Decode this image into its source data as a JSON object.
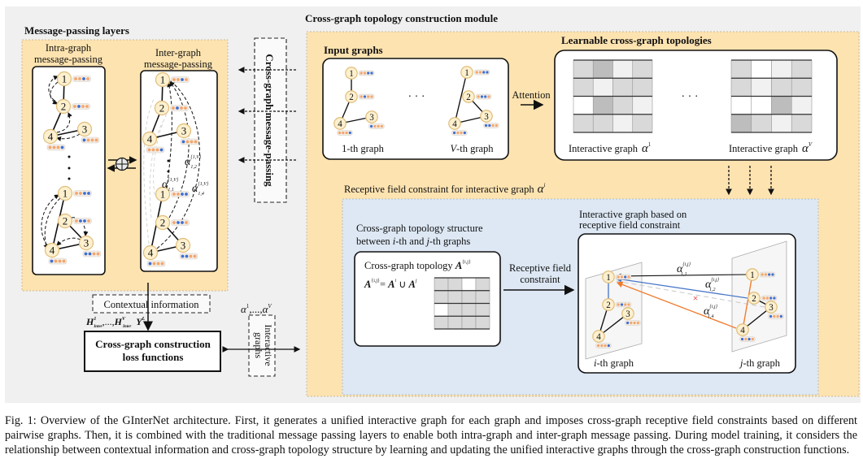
{
  "colors": {
    "background": "#f0f0f0",
    "panel_orange": "#fde3b0",
    "panel_blue": "#dde8f4",
    "node_fill": "#fdf0cf",
    "node_stroke": "#e0bd78",
    "dot_orange": "#f4a56b",
    "dot_blue": "#3d6fd3",
    "edge_blue": "#4a78c8",
    "edge_orange": "#f07a2a",
    "cross_red": "#e02020"
  },
  "message_passing": {
    "title": "Message-passing layers",
    "intra_label": [
      "Intra-graph",
      "message-passing"
    ],
    "inter_label": [
      "Inter-graph",
      "message-passing"
    ],
    "combine_symbol": "⊕",
    "vertical_dots": "⋮",
    "alpha_12": {
      "sym": "α",
      "sup": "{1,V}",
      "sub": "1,2"
    },
    "alpha_11": {
      "sym": "α",
      "sup": "{1,V}",
      "sub": "1,1"
    },
    "alpha_14": {
      "sym": "α",
      "sup": "{1,V}",
      "sub": "1,4"
    }
  },
  "cross_graph_message_passing": "Cross-graph message-passing",
  "module": {
    "title": "Cross-graph topology construction module",
    "input_title": "Input graphs",
    "graph1_label": "1-th graph",
    "graphV_prefix": "V",
    "graphV_suffix": "-th graph",
    "ellipsis": "· · ·",
    "attention": "Attention",
    "learnable_title": "Learnable cross-graph topologies",
    "interactive_label": "Interactive graph",
    "alpha_sym": "α",
    "alpha1_sup": "1",
    "alphaV_sup": "V",
    "matrix_alpha1": [
      [
        2,
        3,
        1,
        2
      ],
      [
        2,
        1,
        2,
        2
      ],
      [
        0,
        3,
        2,
        1
      ],
      [
        2,
        2,
        1,
        2
      ]
    ],
    "matrix_alphaV": [
      [
        2,
        0,
        1,
        2
      ],
      [
        2,
        1,
        2,
        2
      ],
      [
        0,
        0,
        3,
        1
      ],
      [
        3,
        2,
        1,
        2
      ]
    ]
  },
  "receptive": {
    "title": "Receptive field constraint for interactive graph",
    "title_alpha_sup": "i",
    "structure_label": [
      "Cross-graph topology structure",
      "between "
    ],
    "structure_line2": {
      "i": "i",
      "mid": "-th and ",
      "j": "j",
      "end": "-th graphs"
    },
    "topology_label": "Cross-graph topology ",
    "A": "A",
    "A_sup_ij": "{i,j}",
    "eq": "= ",
    "A_sup_i": "i",
    "union": " ∪ ",
    "A_sup_j": "j",
    "matrix_A": [
      [
        2,
        2,
        0,
        2
      ],
      [
        2,
        2,
        2,
        2
      ],
      [
        0,
        2,
        2,
        2
      ],
      [
        2,
        2,
        2,
        2
      ]
    ],
    "arrow_label": [
      "Receptive field",
      "constraint"
    ],
    "interactive_based": [
      "Interactive graph based on",
      "receptive field constraint"
    ],
    "i_graph": {
      "var": "i",
      "suffix": "-th graph"
    },
    "j_graph": {
      "var": "j",
      "suffix": "-th graph"
    },
    "alpha_11": {
      "sym": "α",
      "sup": "{i,j}",
      "sub": "1,1"
    },
    "alpha_12": {
      "sym": "α",
      "sup": "{i,j}",
      "sub": "1,2"
    },
    "alpha_14": {
      "sym": "α",
      "sup": "{i,j}",
      "sub": "1,4"
    },
    "blocked_mark": "×"
  },
  "loss": {
    "contextual": "Contextual information",
    "H": "H",
    "H_sup_1": "1",
    "H_sub": "Inter",
    "H_sep": ",...,",
    "H_sup_V": "V",
    "Y": "Y",
    "Y_sup": "L",
    "comma": ",",
    "box": [
      "Cross-graph construction",
      "loss functions"
    ],
    "alphas": {
      "sym": "α",
      "sup1": "1",
      "sep": ",...,",
      "supV": "V"
    },
    "interactive_graphs": [
      "Interactive",
      "graphs"
    ]
  },
  "graphs": {
    "intra_top": {
      "nodes": [
        {
          "label": "1",
          "dots": "oobo"
        },
        {
          "label": "2",
          "dots": "oboo"
        },
        {
          "label": "3",
          "dots": "booo"
        },
        {
          "label": "4",
          "dots": "ooob"
        }
      ],
      "edges": [
        [
          0,
          1
        ],
        [
          1,
          3
        ],
        [
          3,
          2
        ]
      ]
    },
    "intra_bot": {
      "nodes": [
        {
          "label": "1",
          "dots": "oobb"
        },
        {
          "label": "2",
          "dots": "obbo"
        },
        {
          "label": "3",
          "dots": "bboo"
        },
        {
          "label": "4",
          "dots": "booo"
        }
      ],
      "edges": [
        [
          0,
          3
        ],
        [
          1,
          2
        ],
        [
          3,
          2
        ]
      ]
    },
    "inter_top": {
      "nodes": [
        {
          "label": "1",
          "dots": "oobo"
        },
        {
          "label": "2",
          "dots": "oboo"
        },
        {
          "label": "3",
          "dots": "booo"
        },
        {
          "label": "4",
          "dots": "ooob"
        }
      ],
      "edges": [
        [
          0,
          1
        ],
        [
          1,
          3
        ],
        [
          3,
          2
        ]
      ]
    },
    "inter_bot": {
      "nodes": [
        {
          "label": "1",
          "dots": "oobb"
        },
        {
          "label": "2",
          "dots": "obbo"
        },
        {
          "label": "3",
          "dots": "bboo"
        },
        {
          "label": "4",
          "dots": "booo"
        }
      ],
      "edges": [
        [
          0,
          3
        ],
        [
          1,
          2
        ],
        [
          3,
          2
        ]
      ]
    },
    "input_1": {
      "nodes": [
        {
          "label": "1",
          "dots": "oobb"
        },
        {
          "label": "2",
          "dots": "oboo"
        },
        {
          "label": "3",
          "dots": "booo"
        },
        {
          "label": "4",
          "dots": "ooob"
        }
      ],
      "edges": [
        [
          0,
          1
        ],
        [
          1,
          3
        ],
        [
          3,
          2
        ]
      ]
    },
    "input_V": {
      "nodes": [
        {
          "label": "1",
          "dots": "oobb"
        },
        {
          "label": "2",
          "dots": "obbo"
        },
        {
          "label": "3",
          "dots": "bboo"
        },
        {
          "label": "4",
          "dots": "boob"
        }
      ],
      "edges": [
        [
          0,
          3
        ],
        [
          1,
          2
        ],
        [
          3,
          2
        ]
      ]
    },
    "i_graph": {
      "nodes": [
        {
          "label": "1",
          "dots": "oobo"
        },
        {
          "label": "2",
          "dots": "oboo"
        },
        {
          "label": "3",
          "dots": "booo"
        },
        {
          "label": "4",
          "dots": "ooob"
        }
      ],
      "edges": [
        [
          0,
          1
        ],
        [
          1,
          3
        ],
        [
          3,
          2
        ]
      ]
    },
    "j_graph": {
      "nodes": [
        {
          "label": "1",
          "dots": "oobb"
        },
        {
          "label": "2",
          "dots": "oobb"
        },
        {
          "label": "3",
          "dots": "boob"
        },
        {
          "label": "4",
          "dots": "bobo"
        }
      ],
      "edges": [
        [
          0,
          3
        ],
        [
          1,
          2
        ],
        [
          3,
          2
        ]
      ]
    }
  },
  "caption": "Fig. 1: Overview of the GInterNet architecture. First, it generates a unified interactive graph for each graph and imposes cross-graph receptive field constraints based on different pairwise graphs. Then, it is combined with the traditional message passing layers to enable both intra-graph and inter-graph message passing. During model training, it considers the relationship between contextual information and cross-graph topology structure by learning and updating the unified interactive graphs through the cross-graph construction functions."
}
